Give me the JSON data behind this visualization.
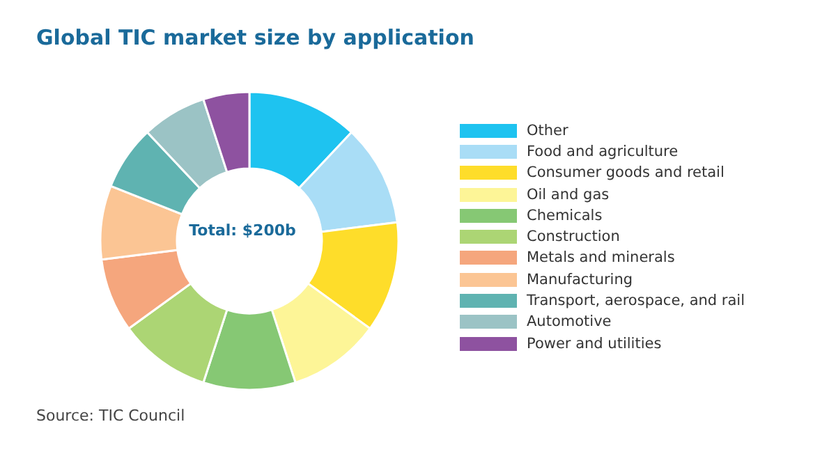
{
  "chart_data": {
    "type": "donut",
    "title": "Global TIC market size by application",
    "categories": [
      "Other",
      "Food and agriculture",
      "Consumer goods and retail",
      "Oil and gas",
      "Chemicals",
      "Construction",
      "Metals and minerals",
      "Manufacturing",
      "Transport, aerospace, and rail",
      "Automotive",
      "Power and utilities"
    ],
    "values": [
      12,
      11,
      12,
      10,
      10,
      10,
      8,
      8,
      7,
      7,
      5
    ],
    "colors": [
      "#1ec3f0",
      "#a9ddf6",
      "#fedd2a",
      "#fdf597",
      "#86c874",
      "#acd574",
      "#f5a67d",
      "#fbc594",
      "#5fb3b1",
      "#9bc3c5",
      "#8e52a0"
    ],
    "legend": "right",
    "annotations": [
      "Total: $200b",
      "Source: TIC Council"
    ]
  }
}
